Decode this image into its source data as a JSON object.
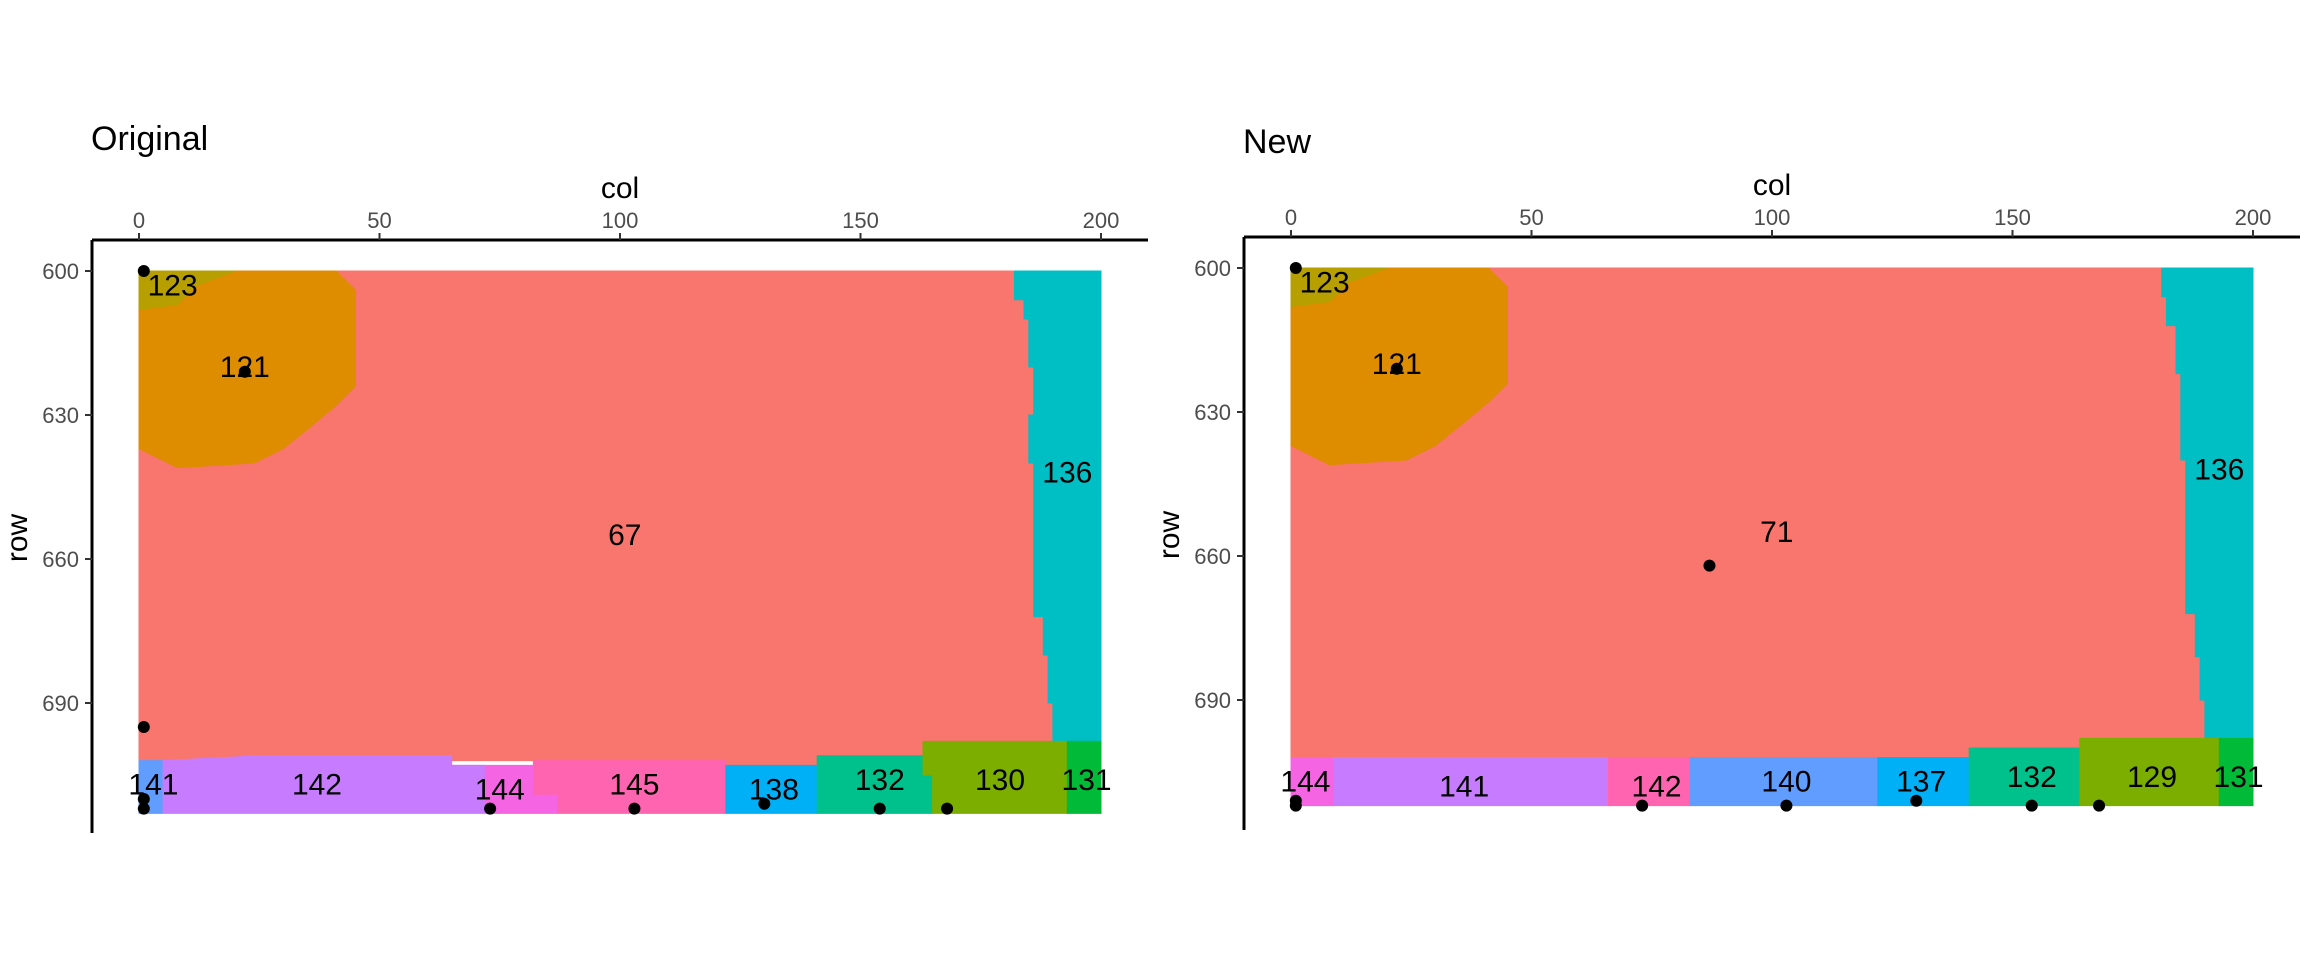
{
  "chart_data": [
    {
      "type": "heatmap",
      "title": "Original",
      "xlabel": "col",
      "ylabel": "row",
      "xlim": [
        0,
        200
      ],
      "ylim": [
        600,
        712
      ],
      "y_reversed": true,
      "x_axis_position": "top",
      "x_ticks": [
        0,
        50,
        100,
        150,
        200
      ],
      "y_ticks": [
        600,
        630,
        660,
        690
      ],
      "grid": false,
      "legend": "none",
      "regions": [
        {
          "id": "67",
          "color": "#F8766D",
          "label_at": [
            101,
            655
          ],
          "polygon": [
            [
              0,
              600
            ],
            [
              182,
              600
            ],
            [
              182,
              606
            ],
            [
              184,
              606
            ],
            [
              184,
              610
            ],
            [
              185,
              610
            ],
            [
              185,
              620
            ],
            [
              186,
              620
            ],
            [
              186,
              630
            ],
            [
              185,
              630
            ],
            [
              185,
              640
            ],
            [
              186,
              640
            ],
            [
              186,
              672
            ],
            [
              188,
              672
            ],
            [
              188,
              680
            ],
            [
              189,
              680
            ],
            [
              189,
              690
            ],
            [
              190,
              690
            ],
            [
              190,
              698
            ],
            [
              163,
              698
            ],
            [
              163,
              701
            ],
            [
              141,
              701
            ],
            [
              141,
              703
            ],
            [
              122,
              703
            ],
            [
              122,
              702
            ],
            [
              0,
              702
            ]
          ]
        },
        {
          "id": "121",
          "color": "#DE8C00",
          "label_at": [
            22,
            620
          ],
          "polygon": [
            [
              8,
              600
            ],
            [
              41,
              600
            ],
            [
              45,
              604
            ],
            [
              45,
              624
            ],
            [
              41,
              628
            ],
            [
              35,
              633
            ],
            [
              30,
              637
            ],
            [
              24,
              640
            ],
            [
              8,
              641
            ],
            [
              0,
              637
            ],
            [
              0,
              608
            ]
          ]
        },
        {
          "id": "123",
          "color": "#B79F00",
          "label_at": [
            7,
            603
          ],
          "polygon": [
            [
              0,
              600
            ],
            [
              20,
              600
            ],
            [
              12,
              603
            ],
            [
              8,
              607
            ],
            [
              0,
              608
            ]
          ]
        },
        {
          "id": "136",
          "color": "#00BFC4",
          "label_at": [
            193,
            642
          ],
          "polygon": [
            [
              182,
              600
            ],
            [
              200,
              600
            ],
            [
              200,
              698
            ],
            [
              190,
              698
            ],
            [
              190,
              690
            ],
            [
              189,
              690
            ],
            [
              189,
              680
            ],
            [
              188,
              680
            ],
            [
              188,
              672
            ],
            [
              186,
              672
            ],
            [
              186,
              640
            ],
            [
              185,
              640
            ],
            [
              185,
              630
            ],
            [
              186,
              630
            ],
            [
              186,
              620
            ],
            [
              185,
              620
            ],
            [
              185,
              610
            ],
            [
              184,
              610
            ],
            [
              184,
              606
            ],
            [
              182,
              606
            ]
          ]
        },
        {
          "id": "141",
          "color": "#619CFF",
          "label_at": [
            3,
            707
          ],
          "polygon": [
            [
              0,
              702
            ],
            [
              5,
              702
            ],
            [
              5,
              713
            ],
            [
              0,
              713
            ]
          ]
        },
        {
          "id": "142",
          "color": "#C77CFF",
          "label_at": [
            37,
            707
          ],
          "polygon": [
            [
              5,
              702
            ],
            [
              25,
              701
            ],
            [
              65,
              701
            ],
            [
              65,
              703
            ],
            [
              72,
              703
            ],
            [
              72,
              713
            ],
            [
              5,
              713
            ]
          ]
        },
        {
          "id": "144",
          "color": "#F564E3",
          "label_at": [
            75,
            708
          ],
          "polygon": [
            [
              65,
              703
            ],
            [
              82,
              703
            ],
            [
              82,
              709
            ],
            [
              87,
              709
            ],
            [
              87,
              713
            ],
            [
              72,
              713
            ],
            [
              72,
              703
            ]
          ]
        },
        {
          "id": "145",
          "color": "#FF64B0",
          "label_at": [
            103,
            707
          ],
          "polygon": [
            [
              82,
              702
            ],
            [
              122,
              702
            ],
            [
              122,
              713
            ],
            [
              87,
              713
            ],
            [
              87,
              709
            ],
            [
              82,
              709
            ]
          ]
        },
        {
          "id": "138",
          "color": "#00B0F6",
          "label_at": [
            132,
            708
          ],
          "polygon": [
            [
              122,
              703
            ],
            [
              141,
              703
            ],
            [
              141,
              713
            ],
            [
              122,
              713
            ]
          ]
        },
        {
          "id": "132",
          "color": "#00C08B",
          "label_at": [
            154,
            706
          ],
          "polygon": [
            [
              141,
              701
            ],
            [
              163,
              701
            ],
            [
              163,
              705
            ],
            [
              165,
              705
            ],
            [
              165,
              713
            ],
            [
              141,
              713
            ]
          ]
        },
        {
          "id": "130",
          "color": "#7CAE00",
          "label_at": [
            179,
            706
          ],
          "polygon": [
            [
              163,
              698
            ],
            [
              193,
              698
            ],
            [
              193,
              713
            ],
            [
              165,
              713
            ],
            [
              165,
              705
            ],
            [
              163,
              705
            ]
          ]
        },
        {
          "id": "131",
          "color": "#00BA38",
          "label_at": [
            197,
            706
          ],
          "polygon": [
            [
              193,
              698
            ],
            [
              200,
              698
            ],
            [
              200,
              713
            ],
            [
              193,
              713
            ]
          ]
        }
      ],
      "points": [
        [
          1,
          600
        ],
        [
          22,
          621
        ],
        [
          1,
          695
        ],
        [
          1,
          710
        ],
        [
          1,
          712
        ],
        [
          73,
          712
        ],
        [
          103,
          712
        ],
        [
          130,
          711
        ],
        [
          154,
          712
        ],
        [
          168,
          712
        ]
      ]
    },
    {
      "type": "heatmap",
      "title": "New",
      "xlabel": "col",
      "ylabel": "row",
      "xlim": [
        0,
        200
      ],
      "ylim": [
        600,
        712
      ],
      "y_reversed": true,
      "x_axis_position": "top",
      "x_ticks": [
        0,
        50,
        100,
        150,
        200
      ],
      "y_ticks": [
        600,
        630,
        660,
        690
      ],
      "grid": false,
      "legend": "none",
      "regions": [
        {
          "id": "71",
          "color": "#F8766D",
          "label_at": [
            101,
            655
          ],
          "polygon": [
            [
              0,
              600
            ],
            [
              181,
              600
            ],
            [
              181,
              606
            ],
            [
              182,
              606
            ],
            [
              182,
              612
            ],
            [
              184,
              612
            ],
            [
              184,
              622
            ],
            [
              185,
              622
            ],
            [
              185,
              640
            ],
            [
              186,
              640
            ],
            [
              186,
              672
            ],
            [
              188,
              672
            ],
            [
              188,
              681
            ],
            [
              189,
              681
            ],
            [
              189,
              690
            ],
            [
              190,
              690
            ],
            [
              190,
              698
            ],
            [
              164,
              698
            ],
            [
              164,
              700
            ],
            [
              141,
              700
            ],
            [
              141,
              702
            ],
            [
              0,
              702
            ]
          ]
        },
        {
          "id": "121",
          "color": "#DE8C00",
          "label_at": [
            22,
            620
          ],
          "polygon": [
            [
              8,
              600
            ],
            [
              41,
              600
            ],
            [
              45,
              604
            ],
            [
              45,
              624
            ],
            [
              41,
              628
            ],
            [
              35,
              633
            ],
            [
              30,
              637
            ],
            [
              24,
              640
            ],
            [
              8,
              641
            ],
            [
              0,
              637
            ],
            [
              0,
              608
            ]
          ]
        },
        {
          "id": "123",
          "color": "#B79F00",
          "label_at": [
            7,
            603
          ],
          "polygon": [
            [
              0,
              600
            ],
            [
              20,
              600
            ],
            [
              12,
              603
            ],
            [
              8,
              607
            ],
            [
              0,
              608
            ]
          ]
        },
        {
          "id": "136",
          "color": "#00BFC4",
          "label_at": [
            193,
            642
          ],
          "polygon": [
            [
              181,
              600
            ],
            [
              200,
              600
            ],
            [
              200,
              698
            ],
            [
              190,
              698
            ],
            [
              190,
              690
            ],
            [
              189,
              690
            ],
            [
              189,
              681
            ],
            [
              188,
              681
            ],
            [
              188,
              672
            ],
            [
              186,
              672
            ],
            [
              186,
              640
            ],
            [
              185,
              640
            ],
            [
              185,
              622
            ],
            [
              184,
              622
            ],
            [
              184,
              612
            ],
            [
              182,
              612
            ],
            [
              182,
              606
            ],
            [
              181,
              606
            ]
          ]
        },
        {
          "id": "144",
          "color": "#F564E3",
          "label_at": [
            3,
            707
          ],
          "polygon": [
            [
              0,
              702
            ],
            [
              9,
              702
            ],
            [
              9,
              712
            ],
            [
              0,
              712
            ]
          ]
        },
        {
          "id": "141",
          "color": "#C77CFF",
          "label_at": [
            36,
            708
          ],
          "polygon": [
            [
              9,
              702
            ],
            [
              66,
              702
            ],
            [
              66,
              712
            ],
            [
              9,
              712
            ]
          ]
        },
        {
          "id": "142",
          "color": "#FF64B0",
          "label_at": [
            76,
            708
          ],
          "polygon": [
            [
              66,
              702
            ],
            [
              83,
              702
            ],
            [
              83,
              712
            ],
            [
              66,
              712
            ]
          ]
        },
        {
          "id": "140",
          "color": "#619CFF",
          "label_at": [
            103,
            707
          ],
          "polygon": [
            [
              83,
              702
            ],
            [
              122,
              702
            ],
            [
              122,
              712
            ],
            [
              83,
              712
            ]
          ]
        },
        {
          "id": "137",
          "color": "#00B0F6",
          "label_at": [
            131,
            707
          ],
          "polygon": [
            [
              122,
              702
            ],
            [
              141,
              702
            ],
            [
              141,
              712
            ],
            [
              122,
              712
            ]
          ]
        },
        {
          "id": "132",
          "color": "#00C08B",
          "label_at": [
            154,
            706
          ],
          "polygon": [
            [
              141,
              700
            ],
            [
              164,
              700
            ],
            [
              164,
              712
            ],
            [
              141,
              712
            ]
          ]
        },
        {
          "id": "129",
          "color": "#7CAE00",
          "label_at": [
            179,
            706
          ],
          "polygon": [
            [
              164,
              698
            ],
            [
              193,
              698
            ],
            [
              193,
              712
            ],
            [
              164,
              712
            ]
          ]
        },
        {
          "id": "131",
          "color": "#00BA38",
          "label_at": [
            197,
            706
          ],
          "polygon": [
            [
              193,
              698
            ],
            [
              200,
              698
            ],
            [
              200,
              712
            ],
            [
              193,
              712
            ]
          ]
        }
      ],
      "points": [
        [
          1,
          600
        ],
        [
          22,
          621
        ],
        [
          87,
          662
        ],
        [
          1,
          711
        ],
        [
          1,
          712
        ],
        [
          73,
          712
        ],
        [
          103,
          712
        ],
        [
          130,
          711
        ],
        [
          154,
          712
        ],
        [
          168,
          712
        ]
      ]
    }
  ]
}
